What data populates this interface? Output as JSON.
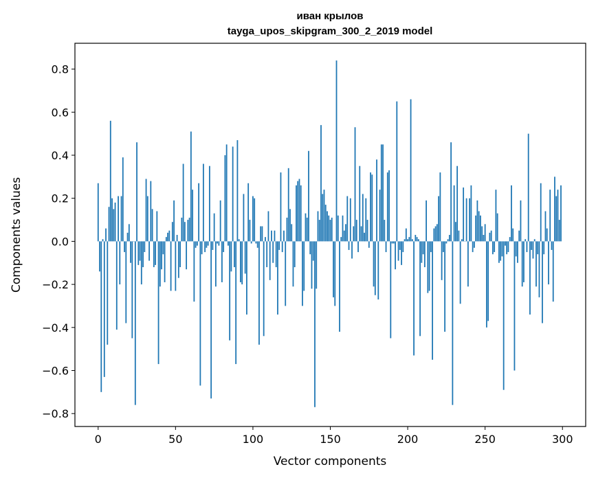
{
  "chart_data": {
    "type": "bar",
    "title": "иван крылов",
    "subtitle": "tayga_upos_skipgram_300_2_2019 model",
    "xlabel": "Vector components",
    "ylabel": "Components values",
    "xlim": [
      -15,
      315
    ],
    "ylim": [
      -0.86,
      0.92
    ],
    "xticks": [
      0,
      50,
      100,
      150,
      200,
      250,
      300
    ],
    "xtick_labels": [
      "0",
      "50",
      "100",
      "150",
      "200",
      "250",
      "300"
    ],
    "yticks": [
      -0.8,
      -0.6,
      -0.4,
      -0.2,
      0.0,
      0.2,
      0.4,
      0.6,
      0.8
    ],
    "ytick_labels": [
      "−0.8",
      "−0.6",
      "−0.4",
      "−0.2",
      "0.0",
      "0.2",
      "0.4",
      "0.6",
      "0.8"
    ],
    "grid": false,
    "legend": false,
    "color": "#1f77b4",
    "x_start": 0,
    "values": [
      0.27,
      -0.14,
      -0.7,
      0.01,
      -0.63,
      0.06,
      -0.48,
      0.16,
      0.56,
      0.2,
      0.15,
      0.18,
      -0.41,
      0.21,
      -0.2,
      0.21,
      0.39,
      -0.05,
      -0.38,
      0.04,
      0.08,
      -0.1,
      -0.45,
      0.0,
      -0.76,
      0.46,
      -0.11,
      -0.09,
      -0.2,
      -0.12,
      -0.05,
      0.29,
      0.21,
      -0.09,
      0.28,
      0.15,
      -0.12,
      -0.11,
      0.14,
      -0.57,
      -0.21,
      -0.13,
      -0.06,
      -0.19,
      0.02,
      0.04,
      0.05,
      -0.23,
      0.09,
      0.19,
      -0.23,
      0.03,
      -0.17,
      -0.12,
      0.11,
      0.36,
      0.09,
      -0.13,
      0.1,
      0.11,
      0.51,
      0.24,
      -0.28,
      -0.03,
      -0.02,
      0.27,
      -0.67,
      -0.06,
      0.36,
      -0.05,
      -0.03,
      -0.02,
      0.35,
      -0.73,
      -0.04,
      0.13,
      -0.21,
      -0.01,
      -0.02,
      0.19,
      -0.19,
      -0.05,
      0.4,
      0.45,
      -0.02,
      -0.46,
      -0.14,
      0.44,
      -0.12,
      -0.57,
      0.47,
      0.01,
      -0.19,
      -0.2,
      0.22,
      -0.15,
      -0.34,
      0.27,
      0.1,
      -0.01,
      0.21,
      0.2,
      -0.01,
      -0.03,
      -0.48,
      0.07,
      0.07,
      -0.44,
      0.02,
      -0.12,
      0.14,
      -0.18,
      0.05,
      -0.1,
      0.05,
      -0.12,
      -0.34,
      -0.04,
      0.32,
      -0.05,
      0.05,
      -0.3,
      0.11,
      0.34,
      0.15,
      0.08,
      -0.21,
      -0.12,
      0.26,
      0.28,
      0.29,
      0.26,
      -0.3,
      -0.23,
      0.13,
      0.11,
      0.42,
      -0.06,
      -0.22,
      -0.09,
      -0.77,
      -0.22,
      0.14,
      0.1,
      0.54,
      0.22,
      0.24,
      0.17,
      0.14,
      0.12,
      0.1,
      0.11,
      -0.26,
      -0.3,
      0.84,
      0.12,
      -0.42,
      0.02,
      0.12,
      0.05,
      0.08,
      0.21,
      -0.04,
      0.2,
      -0.08,
      0.07,
      0.53,
      0.1,
      -0.05,
      0.35,
      0.07,
      0.22,
      0.04,
      0.2,
      0.1,
      -0.03,
      0.32,
      0.31,
      -0.21,
      -0.25,
      0.38,
      -0.27,
      0.24,
      0.45,
      0.45,
      0.1,
      -0.05,
      0.32,
      0.33,
      -0.45,
      -0.01,
      -0.01,
      -0.13,
      0.65,
      -0.09,
      -0.04,
      -0.11,
      -0.05,
      0.01,
      0.06,
      0.01,
      0.02,
      0.66,
      0.01,
      -0.53,
      0.03,
      0.02,
      0.01,
      -0.44,
      -0.1,
      -0.06,
      -0.12,
      0.19,
      -0.24,
      -0.23,
      -0.05,
      -0.55,
      0.06,
      0.07,
      0.08,
      0.21,
      0.32,
      -0.18,
      -0.05,
      -0.42,
      -0.01,
      0.01,
      0.03,
      0.46,
      -0.76,
      0.26,
      0.09,
      0.35,
      0.05,
      -0.29,
      0.01,
      0.25,
      0.0,
      0.2,
      -0.21,
      0.2,
      0.26,
      -0.05,
      -0.03,
      0.12,
      0.19,
      0.14,
      0.12,
      0.07,
      0.03,
      0.08,
      -0.4,
      -0.37,
      0.04,
      0.05,
      -0.06,
      -0.05,
      0.24,
      0.13,
      -0.1,
      -0.09,
      -0.07,
      -0.69,
      -0.02,
      -0.06,
      -0.05,
      0.02,
      0.26,
      0.06,
      -0.6,
      -0.07,
      -0.1,
      0.05,
      0.19,
      -0.21,
      -0.19,
      0.01,
      -0.05,
      0.5,
      -0.34,
      -0.04,
      -0.08,
      0.01,
      -0.21,
      -0.06,
      -0.26,
      0.27,
      -0.38,
      -0.06,
      0.14,
      0.06,
      -0.2,
      0.24,
      -0.04,
      -0.28,
      0.3,
      0.21,
      0.24,
      0.1,
      0.26
    ]
  }
}
